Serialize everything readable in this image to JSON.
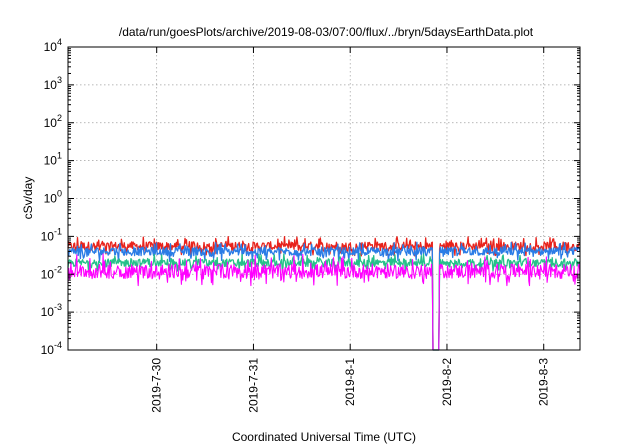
{
  "chart_data": {
    "type": "line",
    "title": "/data/run/goesPlots/archive/2019-08-03/07:00/flux/../bryn/5daysEarthData.plot",
    "xlabel": "Coordinated Universal Time (UTC)",
    "ylabel": "cSv/day",
    "y_scale": "log",
    "ylim": [
      0.0001,
      10000
    ],
    "y_ticks": [
      {
        "value": 0.0001,
        "base": "10",
        "exp": "-4"
      },
      {
        "value": 0.001,
        "base": "10",
        "exp": "-3"
      },
      {
        "value": 0.01,
        "base": "10",
        "exp": "-2"
      },
      {
        "value": 0.1,
        "base": "10",
        "exp": "-1"
      },
      {
        "value": 1,
        "base": "10",
        "exp": "0"
      },
      {
        "value": 10,
        "base": "10",
        "exp": "1"
      },
      {
        "value": 100,
        "base": "10",
        "exp": "2"
      },
      {
        "value": 1000,
        "base": "10",
        "exp": "3"
      },
      {
        "value": 10000,
        "base": "10",
        "exp": "4"
      }
    ],
    "xlim": [
      "2019-07-29T02:00",
      "2019-08-03T09:00"
    ],
    "x_ticks": [
      {
        "value": "2019-07-30T00:00",
        "label": "2019-7-30"
      },
      {
        "value": "2019-07-31T00:00",
        "label": "2019-7-31"
      },
      {
        "value": "2019-08-01T00:00",
        "label": "2019-8-1"
      },
      {
        "value": "2019-08-02T00:00",
        "label": "2019-8-2"
      },
      {
        "value": "2019-08-03T00:00",
        "label": "2019-8-3"
      }
    ],
    "grid": true,
    "legend": "none",
    "series": [
      {
        "color": "#e8231c",
        "typical": 0.055,
        "low": 0.03,
        "high": 0.1
      },
      {
        "color": "#2a7ce6",
        "typical": 0.04,
        "low": 0.022,
        "high": 0.07
      },
      {
        "color": "#26c08a",
        "typical": 0.02,
        "low": 0.012,
        "high": 0.035
      },
      {
        "color": "#ff00ff",
        "typical": 0.012,
        "low": 0.005,
        "high": 0.035
      }
    ],
    "data_gap": {
      "start": "2019-08-01T20:30",
      "end": "2019-08-01T22:00",
      "note_values": 0.0001
    }
  }
}
